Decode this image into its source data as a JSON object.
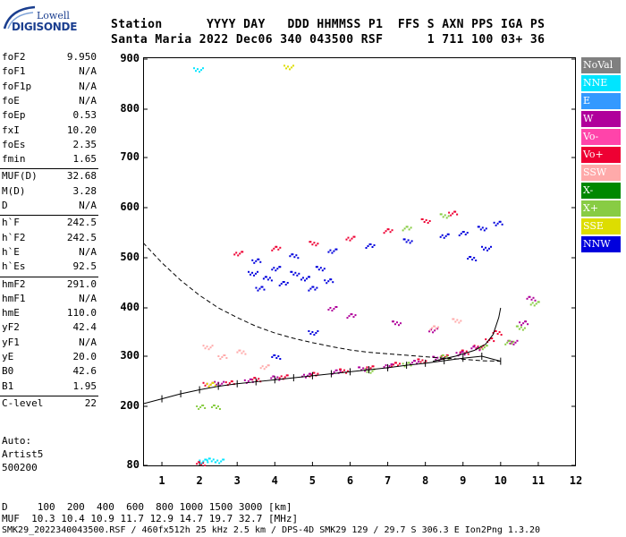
{
  "logo": {
    "top": "Lowell",
    "bottom": "DIGISONDE"
  },
  "header": {
    "line1": "Station      YYYY DAY   DDD HHMMSS P1  FFS S AXN PPS IGA PS",
    "line2": "Santa Maria 2022 Dec06 340 043500 RSF      1 711 100 03+ 36"
  },
  "params": [
    {
      "label": "foF2",
      "value": "9.950"
    },
    {
      "label": "foF1",
      "value": "N/A"
    },
    {
      "label": "foF1p",
      "value": "N/A"
    },
    {
      "label": "foE",
      "value": "N/A"
    },
    {
      "label": "foEp",
      "value": "0.53"
    },
    {
      "label": "fxI",
      "value": "10.20"
    },
    {
      "label": "foEs",
      "value": "2.35"
    },
    {
      "label": "fmin",
      "value": "1.65"
    },
    {
      "label": "MUF(D)",
      "value": "32.68"
    },
    {
      "label": "M(D)",
      "value": "3.28"
    },
    {
      "label": "D",
      "value": "N/A"
    },
    {
      "label": "h`F",
      "value": "242.5"
    },
    {
      "label": "h`F2",
      "value": "242.5"
    },
    {
      "label": "h`E",
      "value": "N/A"
    },
    {
      "label": "h`Es",
      "value": "92.5"
    },
    {
      "label": "hmF2",
      "value": "291.0"
    },
    {
      "label": "hmF1",
      "value": "N/A"
    },
    {
      "label": "hmE",
      "value": "110.0"
    },
    {
      "label": "yF2",
      "value": "42.4"
    },
    {
      "label": "yF1",
      "value": "N/A"
    },
    {
      "label": "yE",
      "value": "20.0"
    },
    {
      "label": "B0",
      "value": "42.6"
    },
    {
      "label": "B1",
      "value": "1.95"
    },
    {
      "label": "C-level",
      "value": "22"
    }
  ],
  "auto": {
    "line1": "Auto:",
    "line2": "Artist5",
    "line3": "500200"
  },
  "legend": [
    {
      "label": "NoVal",
      "color": "#808080"
    },
    {
      "label": "NNE",
      "color": "#00e5ff"
    },
    {
      "label": "E",
      "color": "#3399ff"
    },
    {
      "label": "W",
      "color": "#b0009b"
    },
    {
      "label": "Vo-",
      "color": "#ff44aa"
    },
    {
      "label": "Vo+",
      "color": "#ee0033"
    },
    {
      "label": "SSW",
      "color": "#ffaaaa"
    },
    {
      "label": "X-",
      "color": "#008800"
    },
    {
      "label": "X+",
      "color": "#88cc44"
    },
    {
      "label": "SSE",
      "color": "#dddd00"
    },
    {
      "label": "NNW",
      "color": "#0000dd"
    }
  ],
  "chart_data": {
    "type": "scatter",
    "xlabel": "",
    "ylabel": "",
    "xlim": [
      0.5,
      12
    ],
    "ylim": [
      80,
      900
    ],
    "x_ticks": [
      "1",
      "2",
      "3",
      "4",
      "5",
      "6",
      "7",
      "8",
      "9",
      "10",
      "11",
      "12"
    ],
    "y_ticks": [
      "900",
      "800",
      "700",
      "600",
      "500",
      "400",
      "300",
      "200",
      "80"
    ],
    "series": [
      {
        "name": "Vo+",
        "color": "#ee0033",
        "points": [
          [
            2.2,
            245
          ],
          [
            2.8,
            248
          ],
          [
            3.5,
            255
          ],
          [
            4.2,
            260
          ],
          [
            5.0,
            265
          ],
          [
            5.8,
            272
          ],
          [
            6.5,
            278
          ],
          [
            7.2,
            285
          ],
          [
            7.9,
            292
          ],
          [
            8.5,
            300
          ],
          [
            9.0,
            310
          ],
          [
            9.4,
            320
          ],
          [
            9.7,
            335
          ],
          [
            9.9,
            350
          ],
          [
            3.0,
            510
          ],
          [
            4.0,
            520
          ],
          [
            5.0,
            530
          ],
          [
            6.0,
            540
          ],
          [
            7.0,
            555
          ],
          [
            8.0,
            575
          ],
          [
            8.7,
            590
          ],
          [
            2.0,
            85
          ]
        ]
      },
      {
        "name": "W",
        "color": "#b0009b",
        "points": [
          [
            2.5,
            247
          ],
          [
            3.3,
            252
          ],
          [
            4.0,
            258
          ],
          [
            4.8,
            263
          ],
          [
            5.6,
            270
          ],
          [
            6.3,
            276
          ],
          [
            7.0,
            282
          ],
          [
            7.7,
            289
          ],
          [
            8.3,
            297
          ],
          [
            8.9,
            307
          ],
          [
            9.3,
            318
          ],
          [
            10.3,
            330
          ],
          [
            10.6,
            370
          ],
          [
            10.8,
            420
          ],
          [
            5.5,
            400
          ],
          [
            6.0,
            385
          ],
          [
            7.2,
            370
          ],
          [
            8.2,
            355
          ]
        ]
      },
      {
        "name": "X+",
        "color": "#88cc44",
        "points": [
          [
            6.5,
            272
          ],
          [
            7.5,
            285
          ],
          [
            8.5,
            300
          ],
          [
            9.5,
            320
          ],
          [
            10.2,
            330
          ],
          [
            10.5,
            360
          ],
          [
            10.9,
            410
          ],
          [
            7.5,
            560
          ],
          [
            8.5,
            585
          ],
          [
            2.0,
            200
          ],
          [
            2.4,
            200
          ]
        ]
      },
      {
        "name": "NNW",
        "color": "#0000dd",
        "points": [
          [
            3.4,
            470
          ],
          [
            3.6,
            440
          ],
          [
            3.8,
            460
          ],
          [
            4.0,
            480
          ],
          [
            4.2,
            450
          ],
          [
            4.5,
            470
          ],
          [
            4.8,
            460
          ],
          [
            5.0,
            440
          ],
          [
            5.2,
            480
          ],
          [
            5.4,
            455
          ],
          [
            4.0,
            300
          ],
          [
            5.0,
            350
          ],
          [
            3.5,
            495
          ],
          [
            4.5,
            505
          ],
          [
            5.5,
            515
          ],
          [
            6.5,
            525
          ],
          [
            7.5,
            535
          ],
          [
            8.5,
            545
          ],
          [
            9.0,
            550
          ],
          [
            9.5,
            560
          ],
          [
            9.9,
            570
          ],
          [
            9.2,
            500
          ],
          [
            9.6,
            520
          ]
        ]
      },
      {
        "name": "SSW",
        "color": "#ffaaaa",
        "points": [
          [
            2.2,
            320
          ],
          [
            2.6,
            300
          ],
          [
            3.1,
            310
          ],
          [
            3.7,
            280
          ],
          [
            8.2,
            360
          ],
          [
            8.8,
            375
          ]
        ]
      },
      {
        "name": "SSE",
        "color": "#dddd00",
        "points": [
          [
            4.35,
            885
          ],
          [
            2.3,
            245
          ]
        ]
      },
      {
        "name": "NNE",
        "color": "#00e5ff",
        "points": [
          [
            1.95,
            880
          ],
          [
            2.1,
            90
          ],
          [
            2.3,
            92
          ],
          [
            2.5,
            90
          ]
        ]
      }
    ],
    "trace_hplus": [
      [
        0.5,
        205
      ],
      [
        1.0,
        215
      ],
      [
        1.5,
        225
      ],
      [
        2.0,
        233
      ],
      [
        2.5,
        240
      ],
      [
        3.0,
        245
      ],
      [
        3.5,
        249
      ],
      [
        4.0,
        253
      ],
      [
        4.5,
        257
      ],
      [
        5.0,
        261
      ],
      [
        5.5,
        265
      ],
      [
        6.0,
        269
      ],
      [
        6.5,
        273
      ],
      [
        7.0,
        277
      ],
      [
        7.5,
        282
      ],
      [
        8.0,
        286
      ],
      [
        8.5,
        291
      ],
      [
        9.0,
        296
      ],
      [
        9.5,
        300
      ],
      [
        10.0,
        290
      ]
    ],
    "trace_dashed": [
      [
        0.5,
        530
      ],
      [
        1.0,
        490
      ],
      [
        1.5,
        455
      ],
      [
        2.0,
        425
      ],
      [
        2.5,
        400
      ],
      [
        3.0,
        380
      ],
      [
        3.5,
        362
      ],
      [
        4.0,
        348
      ],
      [
        4.5,
        337
      ],
      [
        5.0,
        328
      ],
      [
        5.5,
        320
      ],
      [
        6.0,
        313
      ],
      [
        6.5,
        308
      ],
      [
        7.0,
        305
      ],
      [
        7.5,
        302
      ],
      [
        8.0,
        299
      ],
      [
        8.5,
        296
      ],
      [
        9.0,
        294
      ],
      [
        9.5,
        291
      ],
      [
        10.0,
        290
      ]
    ],
    "trace_solid_upper": [
      [
        8.2,
        290
      ],
      [
        8.8,
        300
      ],
      [
        9.3,
        312
      ],
      [
        9.6,
        325
      ],
      [
        9.8,
        345
      ],
      [
        9.95,
        380
      ],
      [
        10.0,
        400
      ]
    ]
  },
  "bottom": {
    "line1": "D     100  200  400  600  800 1000 1500 3000 [km]",
    "line2": "MUF  10.3 10.4 10.9 11.7 12.9 14.7 19.7 32.7 [MHz]",
    "line3": "SMK29_2022340043500.RSF / 460fx512h 25 kHz 2.5 km / DPS-4D SMK29 129 / 29.7 S 306.3 E Ion2Png 1.3.20"
  }
}
